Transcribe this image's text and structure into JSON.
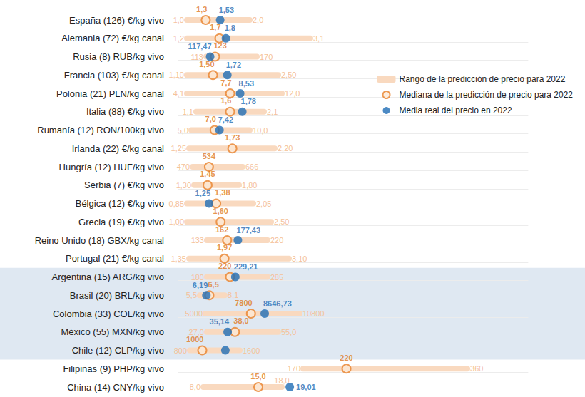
{
  "chart_data": {
    "type": "dumbbell",
    "legend": "right",
    "data_labels": true,
    "categories": [
      "España (126) €/kg vivo",
      "Alemania (72) €/kg canal",
      "Rusia (8) RUB/kg vivo",
      "Francia (103) €/kg canal",
      "Polonia (21) PLN/kg canal",
      "Italia (88) €/kg vivo",
      "Rumanía (12) RON/100kg vivo",
      "Irlanda (22) €/kg canal",
      "Hungría (12) HUF/kg vivo",
      "Serbia (7) €/kg vivo",
      "Bélgica (12) €/kg vivo",
      "Grecia (19) €/kg vivo",
      "Reino Unido (18) GBX/kg canal",
      "Portugal (21) €/kg canal",
      "Argentina (15) ARG/kg vivo",
      "Brasil (20) BRL/kg vivo",
      "Colombia (33) COL/kg vivo",
      "México (55) MXN/kg vivo",
      "Chile (12) CLP/kg vivo",
      "Filipinas (9) PHP/kg vivo",
      "China (14) CNY/kg vivo"
    ],
    "xlims": [
      [
        0.864,
        6.43
      ],
      [
        1.068,
        6.45
      ],
      [
        81.69,
        475.07
      ],
      [
        0.969,
        6.328
      ],
      [
        3.387,
        32.49
      ],
      [
        0.837,
        5.995
      ],
      [
        3.902,
        33.78
      ],
      [
        1.131,
        5.011
      ],
      [
        414.0,
        1786
      ],
      [
        1.125,
        5.014
      ],
      [
        0.695,
        7.018
      ],
      [
        0.847,
        7.076
      ],
      [
        92.06,
        593.6
      ],
      [
        1.1625,
        7.2875
      ],
      [
        130.6,
        735.9
      ],
      [
        3.271,
        39.67
      ],
      [
        3330,
        24860
      ],
      [
        15.8,
        153.0
      ],
      [
        617.1,
        6217
      ],
      [
        25.43,
        430.2
      ],
      [
        4.818,
        49.36
      ]
    ],
    "series": [
      {
        "name": "Rango de la predicción de precio para 2022",
        "color": "#f9d9bf",
        "line_style": "solid",
        "values": [
          [
            1.0,
            2.0
          ],
          [
            1.2,
            3.1
          ],
          [
            113,
            170
          ],
          [
            1.1,
            2.5
          ],
          [
            4.1,
            12.0
          ],
          [
            1.1,
            2.1
          ],
          [
            5.0,
            10.0
          ],
          [
            1.25,
            2.2
          ],
          [
            470,
            666
          ],
          [
            1.3,
            1.8
          ],
          [
            0.85,
            2.05
          ],
          [
            1.0,
            2.5
          ],
          [
            133,
            220
          ],
          [
            1.35,
            3.1
          ],
          [
            180,
            285
          ],
          [
            5.5,
            8.1
          ],
          [
            5000,
            10800
          ],
          [
            27.0,
            55.0
          ],
          [
            800,
            1600
          ],
          [
            170,
            360
          ],
          [
            8.0,
            18.0
          ]
        ],
        "value_labels": [
          [
            "1,0",
            "2,0"
          ],
          [
            "1,2",
            "3,1"
          ],
          [
            "113",
            "170"
          ],
          [
            "1,10",
            "2,50"
          ],
          [
            "4,1",
            "12,0"
          ],
          [
            "1,1",
            "2,1"
          ],
          [
            "5,0",
            "10,0"
          ],
          [
            "1,25",
            "2,20"
          ],
          [
            "470",
            "666"
          ],
          [
            "1,30",
            "1,80"
          ],
          [
            "0,85",
            "2,05"
          ],
          [
            "1,00",
            "2,50"
          ],
          [
            "133",
            "220"
          ],
          [
            "1,35",
            "3,10"
          ],
          [
            "180",
            "285"
          ],
          [
            "5,5",
            "8,1"
          ],
          [
            "5000",
            "10800"
          ],
          [
            "27,0",
            "55,0"
          ],
          [
            "800",
            "1600"
          ],
          [
            "170",
            "360"
          ],
          [
            "8,0",
            "18,0"
          ]
        ]
      },
      {
        "name": "Mediana de la predicción de precio para 2022",
        "color": "#e8822c",
        "marker": "hollow_circle",
        "values": [
          1.3,
          1.7,
          123,
          1.5,
          7.7,
          1.6,
          7.0,
          1.73,
          534,
          1.45,
          1.38,
          1.6,
          162,
          1.97,
          220,
          6.5,
          7800,
          38.0,
          1000,
          220,
          15.0
        ],
        "value_labels": [
          "1,3",
          "1,7",
          "123",
          "1,50",
          "7,7",
          "1,6",
          "7,0",
          "1,73",
          "534",
          "1,45",
          "1,38",
          "1,60",
          "162",
          "1,97",
          "220",
          "6,5",
          "7800",
          "38,0",
          "1000",
          "220",
          "15,0"
        ]
      },
      {
        "name": "Media real del precio en 2022",
        "color": "#1f6db5",
        "marker": "circle",
        "values": [
          1.53,
          1.8,
          117.47,
          1.72,
          8.53,
          1.78,
          7.42,
          null,
          null,
          null,
          1.25,
          null,
          177.43,
          null,
          229.21,
          6.19,
          8646.73,
          35.14,
          1370,
          null,
          19.01
        ],
        "value_labels": [
          "1,53",
          "1,8",
          "117,47",
          "1,72",
          "8,53",
          "1,78",
          "7,42",
          null,
          null,
          null,
          "1,25",
          null,
          "177,43",
          null,
          "229,21",
          "6,19",
          "8646,73",
          "35,14",
          null,
          null,
          "19,01"
        ]
      }
    ]
  }
}
